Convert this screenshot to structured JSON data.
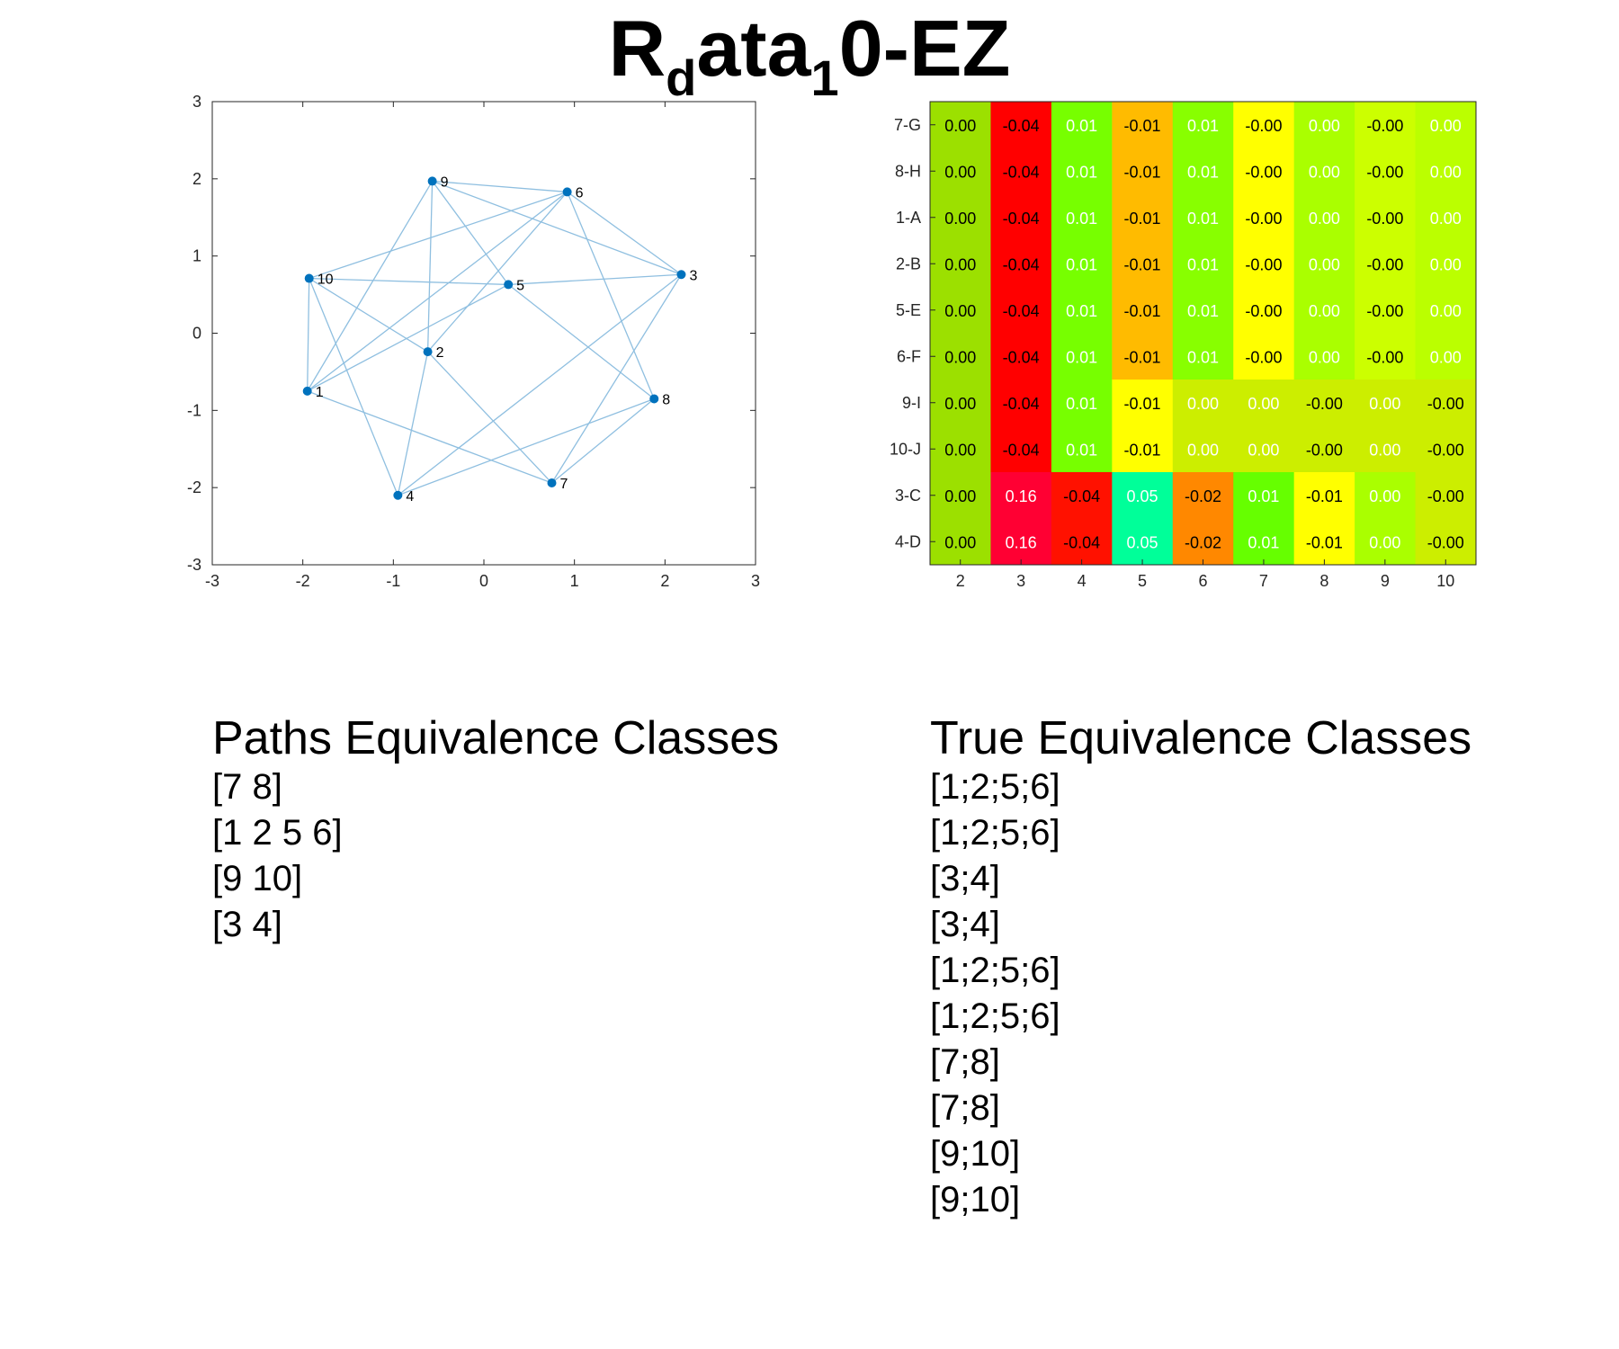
{
  "title": {
    "main_pre": "R",
    "sub_d": "d",
    "main_mid": "ata",
    "sub_1": "1",
    "main_post": "0-EZ"
  },
  "chart_data": [
    {
      "type": "scatter",
      "title": "",
      "xlabel": "",
      "ylabel": "",
      "xlim": [
        -3,
        3
      ],
      "ylim": [
        -3,
        3
      ],
      "xticks": [
        "-3",
        "-2",
        "-1",
        "0",
        "1",
        "2",
        "3"
      ],
      "yticks": [
        "3",
        "2",
        "1",
        "0",
        "-1",
        "-2",
        "-3"
      ],
      "grid": false,
      "point_color": "#0072BD",
      "edge_color": "#8FBFE0",
      "nodes": [
        {
          "id": "1",
          "x": -1.95,
          "y": -0.75
        },
        {
          "id": "2",
          "x": -0.62,
          "y": -0.24
        },
        {
          "id": "3",
          "x": 2.18,
          "y": 0.76
        },
        {
          "id": "4",
          "x": -0.95,
          "y": -2.1
        },
        {
          "id": "5",
          "x": 0.27,
          "y": 0.63
        },
        {
          "id": "6",
          "x": 0.92,
          "y": 1.83
        },
        {
          "id": "7",
          "x": 0.75,
          "y": -1.94
        },
        {
          "id": "8",
          "x": 1.88,
          "y": -0.85
        },
        {
          "id": "9",
          "x": -0.57,
          "y": 1.97
        },
        {
          "id": "10",
          "x": -1.93,
          "y": 0.71
        }
      ],
      "edges": [
        [
          "1",
          "10"
        ],
        [
          "1",
          "6"
        ],
        [
          "1",
          "5"
        ],
        [
          "1",
          "7"
        ],
        [
          "10",
          "4"
        ],
        [
          "10",
          "5"
        ],
        [
          "10",
          "2"
        ],
        [
          "10",
          "6"
        ],
        [
          "9",
          "6"
        ],
        [
          "9",
          "3"
        ],
        [
          "9",
          "5"
        ],
        [
          "9",
          "1"
        ],
        [
          "9",
          "2"
        ],
        [
          "6",
          "2"
        ],
        [
          "6",
          "3"
        ],
        [
          "6",
          "8"
        ],
        [
          "5",
          "3"
        ],
        [
          "5",
          "8"
        ],
        [
          "3",
          "7"
        ],
        [
          "3",
          "4"
        ],
        [
          "2",
          "4"
        ],
        [
          "2",
          "7"
        ],
        [
          "4",
          "8"
        ],
        [
          "7",
          "8"
        ]
      ]
    },
    {
      "type": "heatmap",
      "title": "",
      "xlabel": "",
      "ylabel": "",
      "columns": [
        "2",
        "3",
        "4",
        "5",
        "6",
        "7",
        "8",
        "9",
        "10"
      ],
      "rows": [
        "7-G",
        "8-H",
        "1-A",
        "2-B",
        "5-E",
        "6-F",
        "9-I",
        "10-J",
        "3-C",
        "4-D"
      ],
      "values": [
        [
          "0.00",
          "-0.04",
          "0.01",
          "-0.01",
          "0.01",
          "-0.00",
          "0.00",
          "-0.00",
          "0.00"
        ],
        [
          "0.00",
          "-0.04",
          "0.01",
          "-0.01",
          "0.01",
          "-0.00",
          "0.00",
          "-0.00",
          "0.00"
        ],
        [
          "0.00",
          "-0.04",
          "0.01",
          "-0.01",
          "0.01",
          "-0.00",
          "0.00",
          "-0.00",
          "0.00"
        ],
        [
          "0.00",
          "-0.04",
          "0.01",
          "-0.01",
          "0.01",
          "-0.00",
          "0.00",
          "-0.00",
          "0.00"
        ],
        [
          "0.00",
          "-0.04",
          "0.01",
          "-0.01",
          "0.01",
          "-0.00",
          "0.00",
          "-0.00",
          "0.00"
        ],
        [
          "0.00",
          "-0.04",
          "0.01",
          "-0.01",
          "0.01",
          "-0.00",
          "0.00",
          "-0.00",
          "0.00"
        ],
        [
          "0.00",
          "-0.04",
          "0.01",
          "-0.01",
          "0.00",
          "0.00",
          "-0.00",
          "0.00",
          "-0.00"
        ],
        [
          "0.00",
          "-0.04",
          "0.01",
          "-0.01",
          "0.00",
          "0.00",
          "-0.00",
          "0.00",
          "-0.00"
        ],
        [
          "0.00",
          "0.16",
          "-0.04",
          "0.05",
          "-0.02",
          "0.01",
          "-0.01",
          "0.00",
          "-0.00"
        ],
        [
          "0.00",
          "0.16",
          "-0.04",
          "0.05",
          "-0.02",
          "0.01",
          "-0.01",
          "0.00",
          "-0.00"
        ]
      ],
      "cell_colors": [
        [
          "#9CE000",
          "#FF0000",
          "#77FF00",
          "#FFBB00",
          "#88FF00",
          "#FFFF00",
          "#AAFF00",
          "#CCFF00",
          "#BBFF00"
        ],
        [
          "#9CE000",
          "#FF0000",
          "#77FF00",
          "#FFBB00",
          "#88FF00",
          "#FFFF00",
          "#AAFF00",
          "#CCFF00",
          "#BBFF00"
        ],
        [
          "#9CE000",
          "#FF0000",
          "#77FF00",
          "#FFBB00",
          "#88FF00",
          "#FFFF00",
          "#AAFF00",
          "#CCFF00",
          "#BBFF00"
        ],
        [
          "#9CE000",
          "#FF0000",
          "#77FF00",
          "#FFBB00",
          "#88FF00",
          "#FFFF00",
          "#AAFF00",
          "#CCFF00",
          "#BBFF00"
        ],
        [
          "#9CE000",
          "#FF0000",
          "#77FF00",
          "#FFBB00",
          "#88FF00",
          "#FFFF00",
          "#AAFF00",
          "#CCFF00",
          "#BBFF00"
        ],
        [
          "#9CE000",
          "#FF0000",
          "#77FF00",
          "#FFBB00",
          "#88FF00",
          "#FFFF00",
          "#AAFF00",
          "#CCFF00",
          "#BBFF00"
        ],
        [
          "#9CE000",
          "#FF0000",
          "#77FF00",
          "#FFFF00",
          "#CCEE00",
          "#CCEE00",
          "#CCEE00",
          "#CCEE00",
          "#CCEE00"
        ],
        [
          "#9CE000",
          "#FF0000",
          "#77FF00",
          "#FFFF00",
          "#CCEE00",
          "#CCEE00",
          "#CCEE00",
          "#CCEE00",
          "#CCEE00"
        ],
        [
          "#9CE000",
          "#FF0033",
          "#FF1100",
          "#00FF99",
          "#FF8800",
          "#66FF00",
          "#FFFF00",
          "#AAFF00",
          "#CCEE00"
        ],
        [
          "#9CE000",
          "#FF0033",
          "#FF1100",
          "#00FF99",
          "#FF8800",
          "#66FF00",
          "#FFFF00",
          "#AAFF00",
          "#CCEE00"
        ]
      ],
      "text_colors": [
        [
          "#000000",
          "#000000",
          "#FFFFFF",
          "#000000",
          "#FFFFFF",
          "#000000",
          "#FFFFFF",
          "#000000",
          "#FFFFFF"
        ],
        [
          "#000000",
          "#000000",
          "#FFFFFF",
          "#000000",
          "#FFFFFF",
          "#000000",
          "#FFFFFF",
          "#000000",
          "#FFFFFF"
        ],
        [
          "#000000",
          "#000000",
          "#FFFFFF",
          "#000000",
          "#FFFFFF",
          "#000000",
          "#FFFFFF",
          "#000000",
          "#FFFFFF"
        ],
        [
          "#000000",
          "#000000",
          "#FFFFFF",
          "#000000",
          "#FFFFFF",
          "#000000",
          "#FFFFFF",
          "#000000",
          "#FFFFFF"
        ],
        [
          "#000000",
          "#000000",
          "#FFFFFF",
          "#000000",
          "#FFFFFF",
          "#000000",
          "#FFFFFF",
          "#000000",
          "#FFFFFF"
        ],
        [
          "#000000",
          "#000000",
          "#FFFFFF",
          "#000000",
          "#FFFFFF",
          "#000000",
          "#FFFFFF",
          "#000000",
          "#FFFFFF"
        ],
        [
          "#000000",
          "#000000",
          "#FFFFFF",
          "#000000",
          "#FFFFFF",
          "#FFFFFF",
          "#000000",
          "#FFFFFF",
          "#000000"
        ],
        [
          "#000000",
          "#000000",
          "#FFFFFF",
          "#000000",
          "#FFFFFF",
          "#FFFFFF",
          "#000000",
          "#FFFFFF",
          "#000000"
        ],
        [
          "#000000",
          "#FFFFFF",
          "#000000",
          "#FFFFFF",
          "#000000",
          "#FFFFFF",
          "#000000",
          "#FFFFFF",
          "#000000"
        ],
        [
          "#000000",
          "#FFFFFF",
          "#000000",
          "#FFFFFF",
          "#000000",
          "#FFFFFF",
          "#000000",
          "#FFFFFF",
          "#000000"
        ]
      ]
    }
  ],
  "paths_classes": {
    "heading": "Paths Equivalence Classes",
    "items": [
      "[7 8]",
      "[1 2 5 6]",
      "[9 10]",
      "[3 4]"
    ]
  },
  "true_classes": {
    "heading": "True Equivalence Classes",
    "items": [
      "[1;2;5;6]",
      "[1;2;5;6]",
      "[3;4]",
      "[3;4]",
      "[1;2;5;6]",
      "[1;2;5;6]",
      "[7;8]",
      "[7;8]",
      "[9;10]",
      "[9;10]"
    ]
  }
}
